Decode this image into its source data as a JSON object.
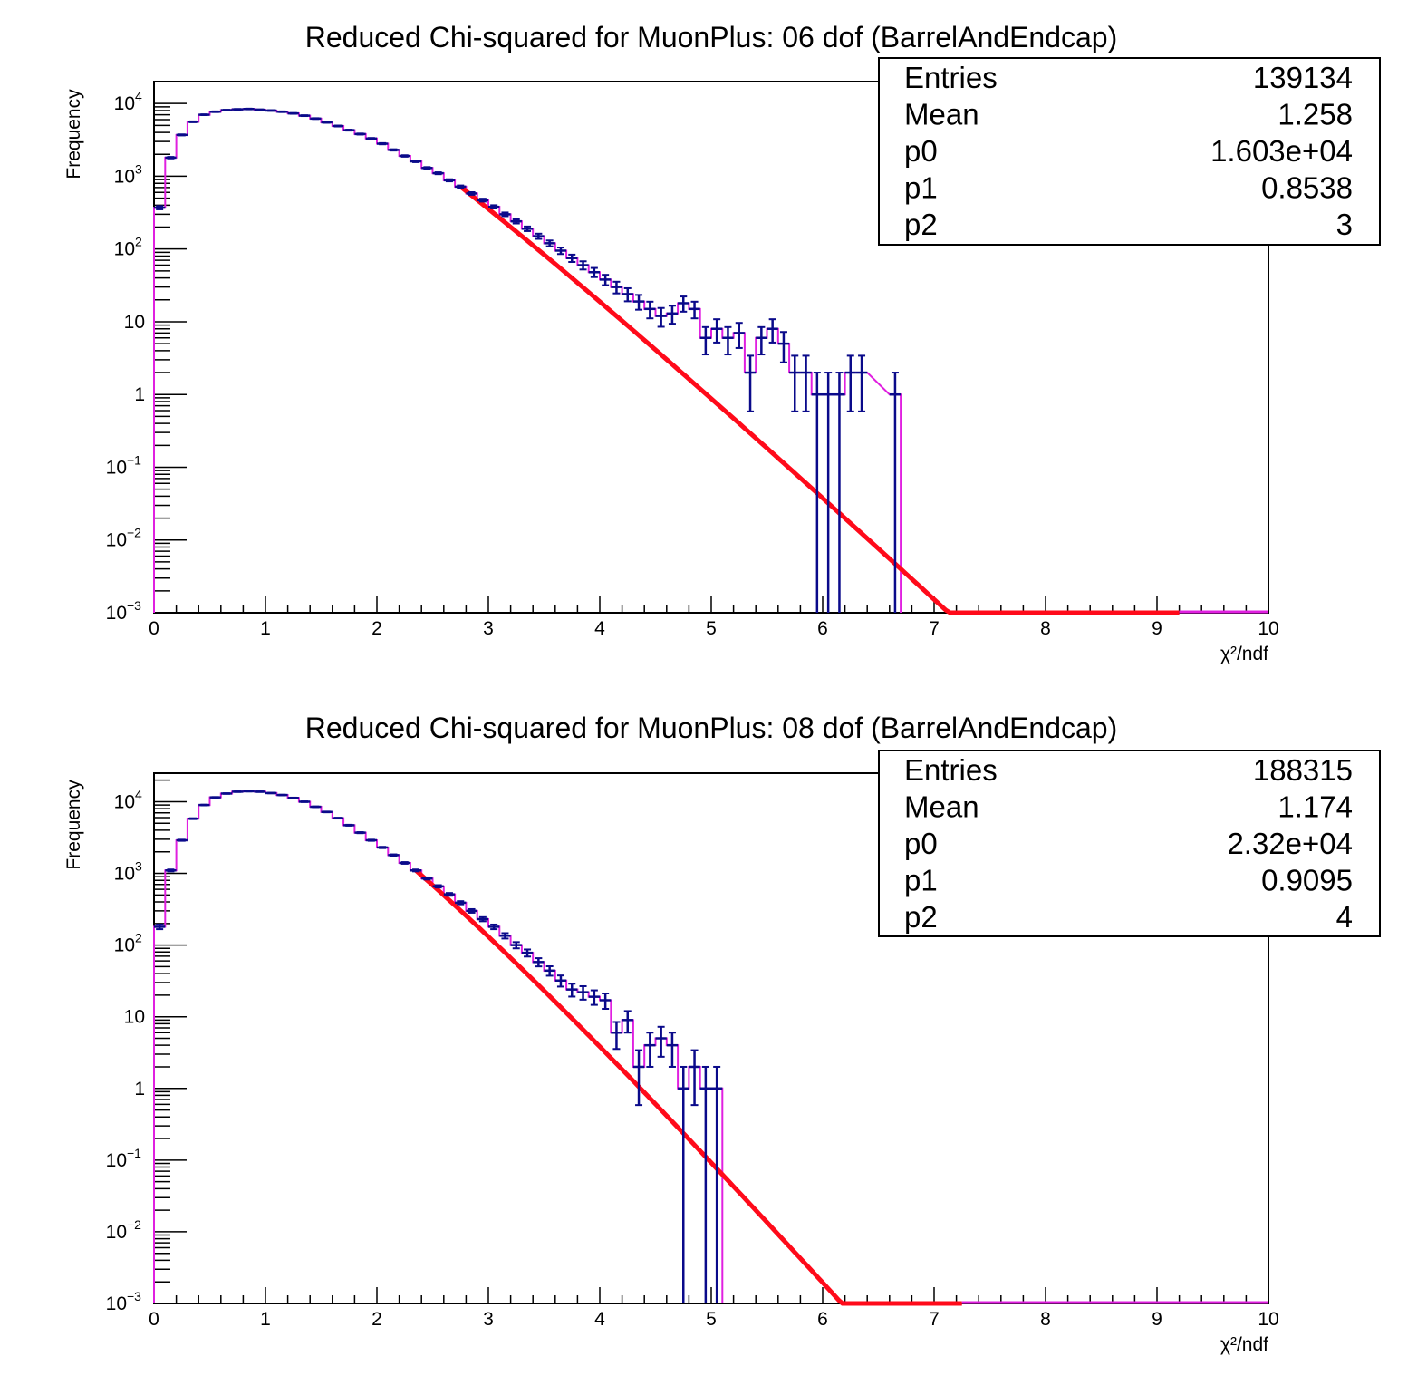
{
  "colors": {
    "data": "#0a0a8a",
    "fit": "#ff0a1a",
    "hist": "#e020e0",
    "frame": "#000000"
  },
  "chart_data": [
    {
      "type": "histogram",
      "title": "Reduced Chi-squared for MuonPlus: 06 dof (BarrelAndEndcap)",
      "xlabel": "χ²/ndf",
      "ylabel": "Frequency",
      "xlim": [
        0,
        10
      ],
      "ylim": [
        0.001,
        20000
      ],
      "yscale": "log",
      "x_ticks": [
        "0",
        "1",
        "2",
        "3",
        "4",
        "5",
        "6",
        "7",
        "8",
        "9",
        "10"
      ],
      "y_ticks": [
        {
          "value": 10000,
          "base": "10",
          "exp": "4"
        },
        {
          "value": 1000,
          "base": "10",
          "exp": "3"
        },
        {
          "value": 100,
          "base": "10",
          "exp": "2"
        },
        {
          "value": 10,
          "base": "10",
          "exp": ""
        },
        {
          "value": 1,
          "base": "1",
          "exp": ""
        },
        {
          "value": 0.1,
          "base": "10",
          "exp": "−1"
        },
        {
          "value": 0.01,
          "base": "10",
          "exp": "−2"
        },
        {
          "value": 0.001,
          "base": "10",
          "exp": "−3"
        }
      ],
      "bin_width": 0.1,
      "bin_centers": [
        0.05,
        0.15,
        0.25,
        0.35,
        0.45,
        0.55,
        0.65,
        0.75,
        0.85,
        0.95,
        1.05,
        1.15,
        1.25,
        1.35,
        1.45,
        1.55,
        1.65,
        1.75,
        1.85,
        1.95,
        2.05,
        2.15,
        2.25,
        2.35,
        2.45,
        2.55,
        2.65,
        2.75,
        2.85,
        2.95,
        3.05,
        3.15,
        3.25,
        3.35,
        3.45,
        3.55,
        3.65,
        3.75,
        3.85,
        3.95,
        4.05,
        4.15,
        4.25,
        4.35,
        4.45,
        4.55,
        4.65,
        4.75,
        4.85,
        4.95,
        5.05,
        5.15,
        5.25,
        5.35,
        5.45,
        5.55,
        5.65,
        5.75,
        5.85,
        5.95,
        6.05,
        6.15,
        6.25,
        6.35,
        6.65
      ],
      "counts": [
        370,
        1800,
        3700,
        5600,
        7000,
        7700,
        8100,
        8300,
        8400,
        8200,
        8000,
        7700,
        7300,
        6800,
        6200,
        5500,
        4900,
        4300,
        3800,
        3300,
        2800,
        2300,
        1900,
        1600,
        1300,
        1100,
        880,
        720,
        580,
        470,
        380,
        300,
        240,
        190,
        150,
        120,
        95,
        75,
        60,
        48,
        38,
        30,
        24,
        19,
        15,
        12,
        13,
        18,
        15,
        6,
        8,
        6,
        7,
        2,
        6,
        8,
        5,
        2,
        2,
        1,
        1,
        1,
        2,
        2,
        1
      ],
      "fit": {
        "x_start": 2.75,
        "x_end": 9.2,
        "p0": 16030,
        "p1": 0.8538,
        "p2": 3
      },
      "stats": [
        {
          "label": "Entries",
          "value": "139134"
        },
        {
          "label": "Mean",
          "value": "1.258"
        },
        {
          "label": "p0",
          "value": "1.603e+04"
        },
        {
          "label": "p1",
          "value": "0.8538"
        },
        {
          "label": "p2",
          "value": "3"
        }
      ]
    },
    {
      "type": "histogram",
      "title": "Reduced Chi-squared for MuonPlus: 08 dof (BarrelAndEndcap)",
      "xlabel": "χ²/ndf",
      "ylabel": "Frequency",
      "xlim": [
        0,
        10
      ],
      "ylim": [
        0.001,
        25000
      ],
      "yscale": "log",
      "x_ticks": [
        "0",
        "1",
        "2",
        "3",
        "4",
        "5",
        "6",
        "7",
        "8",
        "9",
        "10"
      ],
      "y_ticks": [
        {
          "value": 10000,
          "base": "10",
          "exp": "4"
        },
        {
          "value": 1000,
          "base": "10",
          "exp": "3"
        },
        {
          "value": 100,
          "base": "10",
          "exp": "2"
        },
        {
          "value": 10,
          "base": "10",
          "exp": ""
        },
        {
          "value": 1,
          "base": "1",
          "exp": ""
        },
        {
          "value": 0.1,
          "base": "10",
          "exp": "−1"
        },
        {
          "value": 0.01,
          "base": "10",
          "exp": "−2"
        },
        {
          "value": 0.001,
          "base": "10",
          "exp": "−3"
        }
      ],
      "bin_width": 0.1,
      "bin_centers": [
        0.05,
        0.15,
        0.25,
        0.35,
        0.45,
        0.55,
        0.65,
        0.75,
        0.85,
        0.95,
        1.05,
        1.15,
        1.25,
        1.35,
        1.45,
        1.55,
        1.65,
        1.75,
        1.85,
        1.95,
        2.05,
        2.15,
        2.25,
        2.35,
        2.45,
        2.55,
        2.65,
        2.75,
        2.85,
        2.95,
        3.05,
        3.15,
        3.25,
        3.35,
        3.45,
        3.55,
        3.65,
        3.75,
        3.85,
        3.95,
        4.05,
        4.15,
        4.25,
        4.35,
        4.45,
        4.55,
        4.65,
        4.75,
        4.85,
        4.95,
        5.05
      ],
      "counts": [
        180,
        1100,
        2900,
        5800,
        9000,
        11500,
        13000,
        13800,
        14000,
        13800,
        13200,
        12400,
        11300,
        10000,
        8500,
        7200,
        5900,
        4700,
        3700,
        2900,
        2300,
        1800,
        1400,
        1100,
        850,
        660,
        510,
        390,
        300,
        230,
        180,
        135,
        100,
        78,
        58,
        44,
        32,
        24,
        22,
        19,
        17,
        6,
        9,
        2,
        4,
        5,
        4,
        1,
        2,
        1,
        1
      ],
      "fit": {
        "x_start": 2.35,
        "x_end": 7.25,
        "p0": 23200,
        "p1": 0.9095,
        "p2": 4
      },
      "stats": [
        {
          "label": "Entries",
          "value": "188315"
        },
        {
          "label": "Mean",
          "value": "1.174"
        },
        {
          "label": "p0",
          "value": "2.32e+04"
        },
        {
          "label": "p1",
          "value": "0.9095"
        },
        {
          "label": "p2",
          "value": "4"
        }
      ]
    }
  ]
}
